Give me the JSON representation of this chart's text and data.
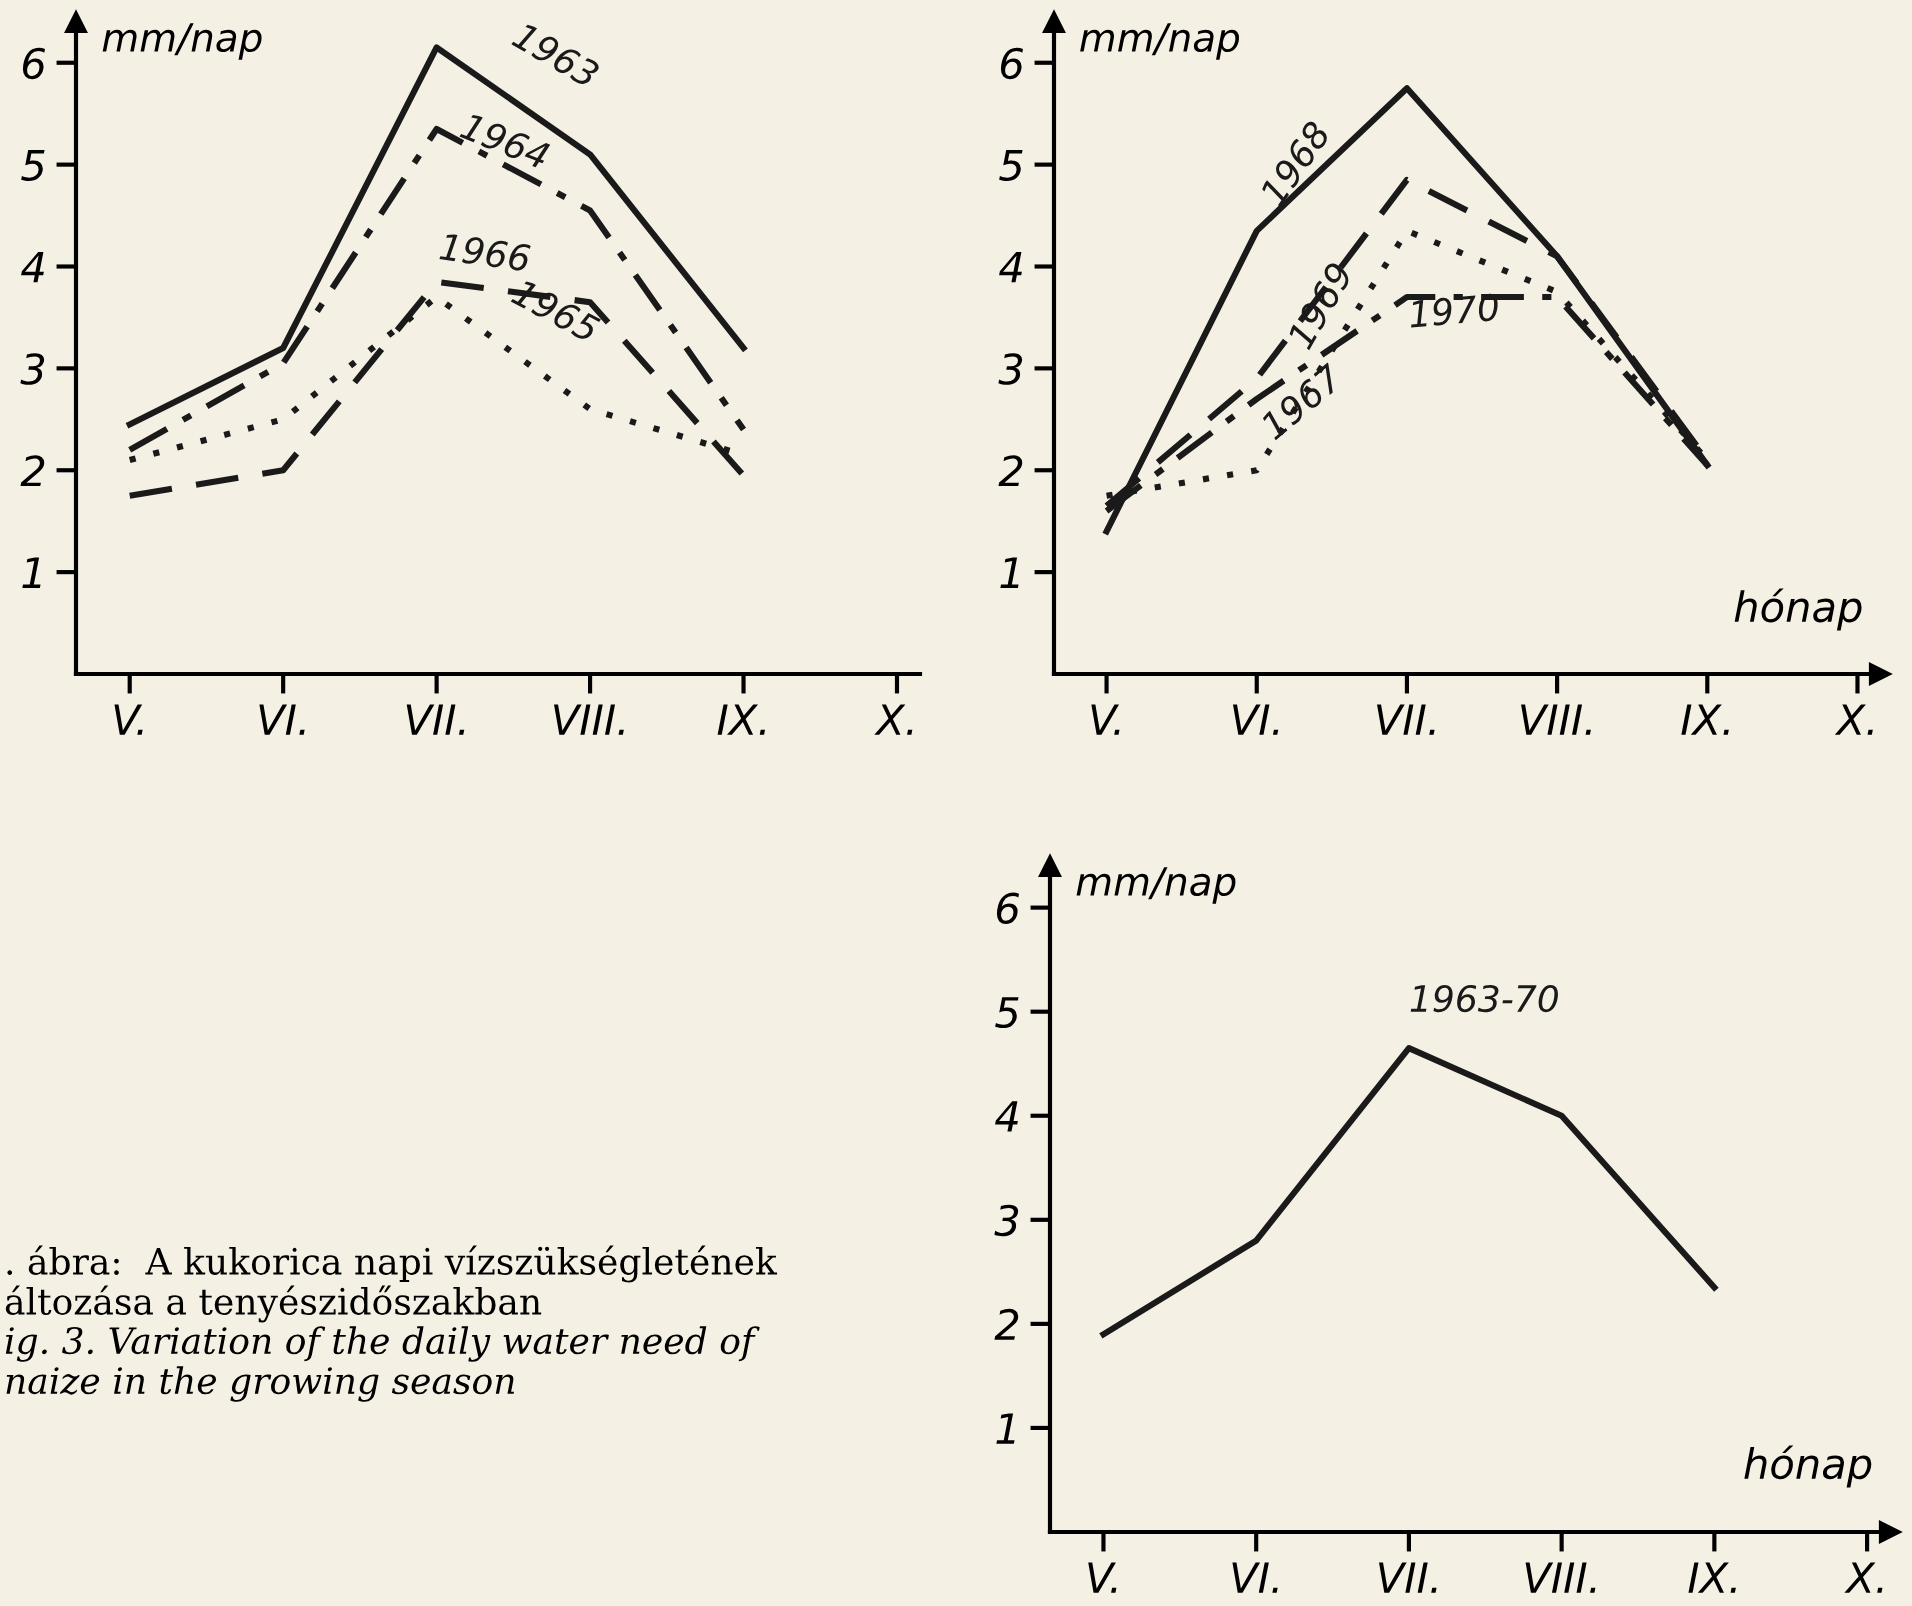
{
  "chart_data": [
    {
      "type": "line",
      "ylabel": "mm/nap",
      "ylim": [
        0,
        6.4
      ],
      "yticks": [
        1,
        2,
        3,
        4,
        5,
        6
      ],
      "categories": [
        "V.",
        "VI.",
        "VII.",
        "VIII.",
        "IX.",
        "X."
      ],
      "series": [
        {
          "name": "1963",
          "color": "#1a1a1a",
          "line_style": "solid",
          "values": [
            2.45,
            3.2,
            6.15,
            5.1,
            3.2,
            null
          ]
        },
        {
          "name": "1964",
          "color": "#1a1a1a",
          "line_style": "dashdot",
          "values": [
            2.2,
            3.05,
            5.35,
            4.55,
            2.4,
            null
          ]
        },
        {
          "name": "1966",
          "color": "#1a1a1a",
          "line_style": "dashed",
          "values": [
            1.75,
            2.0,
            3.85,
            3.65,
            1.95,
            null
          ]
        },
        {
          "name": "1965",
          "color": "#1a1a1a",
          "line_style": "dotted",
          "values": [
            2.1,
            2.5,
            3.7,
            2.6,
            2.15,
            null
          ]
        }
      ],
      "annotations": [
        ". ábra:  A kukorica napi vízszükségletének",
        "áltozása a tenyészidőszakban",
        "ig. 3. Variation of the daily water need of",
        "naize in the growing season"
      ]
    },
    {
      "type": "line",
      "ylabel": "mm/nap",
      "xlabel": "hónap",
      "ylim": [
        0,
        6.4
      ],
      "yticks": [
        1,
        2,
        3,
        4,
        5,
        6
      ],
      "categories": [
        "V.",
        "VI.",
        "VII.",
        "VIII.",
        "IX.",
        "X."
      ],
      "series": [
        {
          "name": "1968",
          "color": "#1a1a1a",
          "line_style": "solid",
          "values": [
            1.4,
            4.35,
            5.75,
            4.1,
            2.05,
            null
          ]
        },
        {
          "name": "1969",
          "color": "#1a1a1a",
          "line_style": "dashed",
          "values": [
            1.65,
            2.9,
            4.85,
            4.1,
            2.1,
            null
          ]
        },
        {
          "name": "1967",
          "color": "#1a1a1a",
          "line_style": "dotted",
          "values": [
            1.75,
            2.0,
            4.35,
            3.75,
            2.1,
            null
          ]
        },
        {
          "name": "1970",
          "color": "#1a1a1a",
          "line_style": "dashdot",
          "values": [
            1.6,
            2.7,
            3.7,
            3.7,
            2.05,
            null
          ]
        }
      ]
    },
    {
      "type": "line",
      "ylabel": "mm/nap",
      "xlabel": "hónap",
      "ylim": [
        0,
        6.4
      ],
      "yticks": [
        1,
        2,
        3,
        4,
        5,
        6
      ],
      "categories": [
        "V.",
        "VI.",
        "VII.",
        "VIII.",
        "IX.",
        "X."
      ],
      "series": [
        {
          "name": "1963-70",
          "color": "#1a1a1a",
          "line_style": "solid",
          "values": [
            1.9,
            2.8,
            4.65,
            4.0,
            2.35,
            null
          ]
        }
      ]
    }
  ]
}
